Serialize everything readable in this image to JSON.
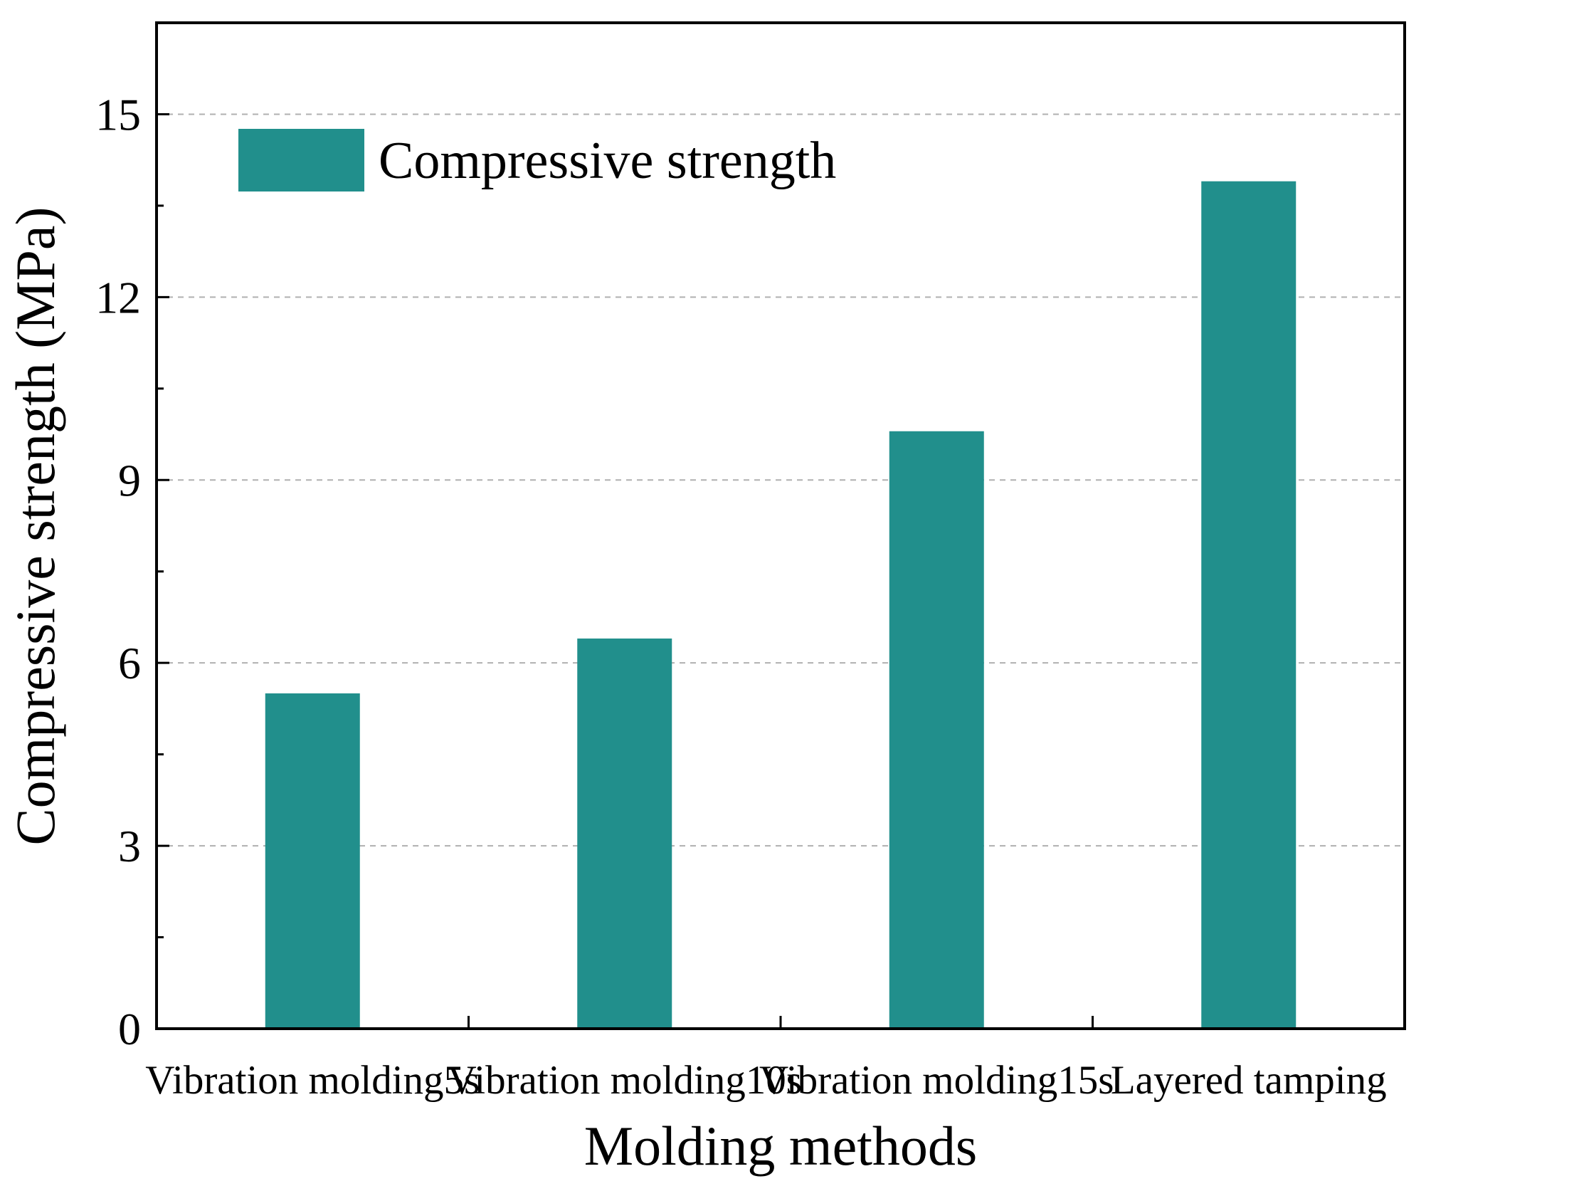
{
  "chart_data": {
    "type": "bar",
    "title": "",
    "categories": [
      "Vibration molding5s",
      "Vibration molding10s",
      "Vibration molding15s",
      "Layered tamping"
    ],
    "series": [
      {
        "name": "Compressive strength",
        "values": [
          5.5,
          6.4,
          9.8,
          13.9
        ],
        "color": "#218f8c"
      }
    ],
    "xlabel": "Molding methods",
    "ylabel": "Compressive strength (MPa)",
    "ylim": [
      0,
      16.5
    ],
    "yticks": [
      0,
      3,
      6,
      9,
      12,
      15
    ],
    "grid": true,
    "legend": {
      "position": "top-left",
      "label": "Compressive strength"
    }
  }
}
